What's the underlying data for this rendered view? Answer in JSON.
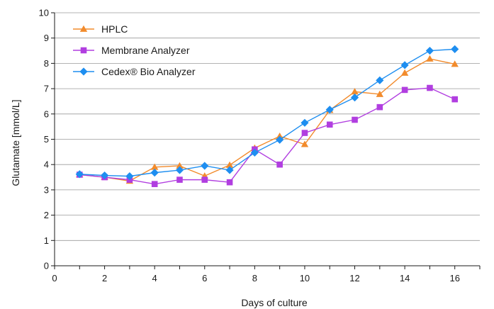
{
  "chart_data": {
    "type": "line",
    "title": "",
    "xlabel": "Days of culture",
    "ylabel": "Glutamate [mmol/L]",
    "xlim": [
      0,
      17
    ],
    "ylim": [
      0,
      10
    ],
    "x_ticks": [
      0,
      2,
      4,
      6,
      8,
      10,
      12,
      14,
      16
    ],
    "y_ticks": [
      0,
      1,
      2,
      3,
      4,
      5,
      6,
      7,
      8,
      9,
      10
    ],
    "grid": "horizontal",
    "legend_position": "top-left",
    "x": [
      1,
      2,
      3,
      4,
      5,
      6,
      7,
      8,
      9,
      10,
      11,
      12,
      13,
      14,
      15,
      16
    ],
    "series": [
      {
        "name": "HPLC",
        "marker": "triangle",
        "color": "#f28b2c",
        "values": [
          3.6,
          3.5,
          3.35,
          3.9,
          3.95,
          3.55,
          3.98,
          4.65,
          5.12,
          4.8,
          6.15,
          6.88,
          6.78,
          7.62,
          8.18,
          7.97
        ]
      },
      {
        "name": "Membrane Analyzer",
        "marker": "square",
        "color": "#b13ee0",
        "values": [
          3.6,
          3.5,
          3.4,
          3.23,
          3.4,
          3.4,
          3.3,
          4.6,
          4.0,
          5.25,
          5.58,
          5.77,
          6.27,
          6.95,
          7.03,
          6.58
        ]
      },
      {
        "name": "Cedex® Bio Analyzer",
        "marker": "diamond",
        "color": "#1e8ef0",
        "values": [
          3.62,
          3.57,
          3.54,
          3.68,
          3.78,
          3.95,
          3.78,
          4.47,
          4.98,
          5.65,
          6.17,
          6.65,
          7.33,
          7.93,
          8.5,
          8.56
        ]
      }
    ]
  }
}
